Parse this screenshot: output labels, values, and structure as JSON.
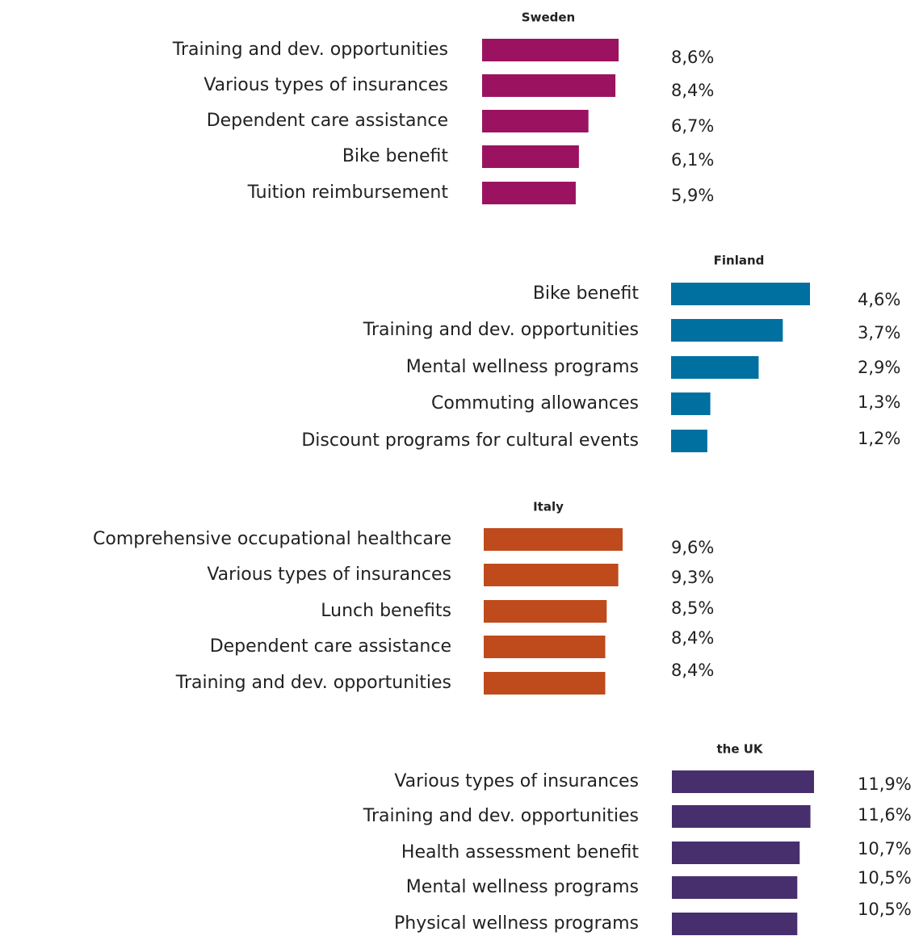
{
  "chart_data": [
    {
      "type": "bar",
      "title": "Sweden",
      "color": "#9b1260",
      "categories": [
        "Training and dev. opportunities",
        "Various types of insurances",
        "Dependent care assistance",
        "Bike benefit",
        "Tuition reimbursement"
      ],
      "values": [
        8.6,
        8.4,
        6.7,
        6.1,
        5.9
      ],
      "value_labels": [
        "8,6%",
        "8,4%",
        "6,7%",
        "6,1%",
        "5,9%"
      ]
    },
    {
      "type": "bar",
      "title": "Finland",
      "color": "#0070a0",
      "categories": [
        "Bike benefit",
        "Training and dev. opportunities",
        "Mental wellness programs",
        "Commuting allowances",
        "Discount programs for cultural events"
      ],
      "values": [
        4.6,
        3.7,
        2.9,
        1.3,
        1.2
      ],
      "value_labels": [
        "4,6%",
        "3,7%",
        "2,9%",
        "1,3%",
        "1,2%"
      ]
    },
    {
      "type": "bar",
      "title": "Italy",
      "color": "#bf4a1c",
      "categories": [
        "Comprehensive occupational healthcare",
        "Various types of insurances",
        "Lunch benefits",
        "Dependent care assistance",
        "Training and dev. opportunities"
      ],
      "values": [
        9.6,
        9.3,
        8.5,
        8.4,
        8.4
      ],
      "value_labels": [
        "9,6%",
        "9,3%",
        "8,5%",
        "8,4%",
        "8,4%"
      ]
    },
    {
      "type": "bar",
      "title": "the UK",
      "color": "#472f6e",
      "categories": [
        "Various types of insurances",
        "Training and dev. opportunities",
        "Health assessment benefit",
        "Mental wellness programs",
        "Physical wellness programs"
      ],
      "values": [
        11.9,
        11.6,
        10.7,
        10.5,
        10.5
      ],
      "value_labels": [
        "11,9%",
        "11,6%",
        "10,7%",
        "10,5%",
        "10,5%"
      ]
    }
  ]
}
